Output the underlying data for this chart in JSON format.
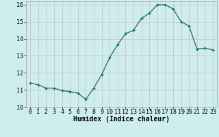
{
  "x": [
    0,
    1,
    2,
    3,
    4,
    5,
    6,
    7,
    8,
    9,
    10,
    11,
    12,
    13,
    14,
    15,
    16,
    17,
    18,
    19,
    20,
    21,
    22,
    23
  ],
  "y": [
    11.4,
    11.3,
    11.1,
    11.1,
    10.95,
    10.9,
    10.8,
    10.45,
    11.1,
    11.9,
    12.9,
    13.65,
    14.3,
    14.5,
    15.2,
    15.5,
    16.0,
    16.0,
    15.75,
    15.0,
    14.75,
    13.4,
    13.45,
    13.35
  ],
  "xlabel": "Humidex (Indice chaleur)",
  "ylim": [
    10,
    16.2
  ],
  "xlim": [
    -0.5,
    23.5
  ],
  "yticks": [
    10,
    11,
    12,
    13,
    14,
    15,
    16
  ],
  "xtick_labels": [
    "0",
    "1",
    "2",
    "3",
    "4",
    "5",
    "6",
    "7",
    "8",
    "9",
    "10",
    "11",
    "12",
    "13",
    "14",
    "15",
    "16",
    "17",
    "18",
    "19",
    "20",
    "21",
    "22",
    "23"
  ],
  "line_color": "#1a6b5a",
  "marker_color": "#1a6b5a",
  "bg_color": "#ceeeed",
  "grid_color_major": "#d4b8b8",
  "grid_color_minor": "#d4b8b8",
  "tick_fontsize": 6.0,
  "label_fontsize": 7.0
}
